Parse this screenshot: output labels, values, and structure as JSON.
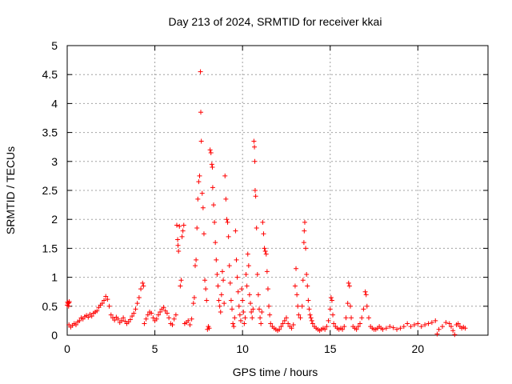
{
  "chart_data": {
    "type": "scatter",
    "title": "Day 213 of 2024, SRMTID for receiver kkai",
    "xlabel": "GPS time / hours",
    "ylabel": "SRMTID / TECUs",
    "xlim": [
      0,
      24
    ],
    "ylim": [
      0,
      5
    ],
    "xticks": [
      "0",
      "5",
      "10",
      "15",
      "20"
    ],
    "yticks": [
      "0",
      "0.5",
      "1",
      "1.5",
      "2",
      "2.5",
      "3",
      "3.5",
      "4",
      "4.5",
      "5"
    ],
    "grid": true,
    "marker": "+",
    "series": [
      {
        "name": "SRMTID",
        "color": "#ff0000",
        "points": [
          [
            0.0,
            0.52
          ],
          [
            0.02,
            0.57
          ],
          [
            0.05,
            0.55
          ],
          [
            0.08,
            0.5
          ],
          [
            0.1,
            0.56
          ],
          [
            0.12,
            0.58
          ],
          [
            0.1,
            0.18
          ],
          [
            0.2,
            0.14
          ],
          [
            0.3,
            0.17
          ],
          [
            0.4,
            0.2
          ],
          [
            0.5,
            0.18
          ],
          [
            0.6,
            0.23
          ],
          [
            0.7,
            0.25
          ],
          [
            0.8,
            0.3
          ],
          [
            0.9,
            0.28
          ],
          [
            1.0,
            0.32
          ],
          [
            1.1,
            0.34
          ],
          [
            1.2,
            0.31
          ],
          [
            1.3,
            0.36
          ],
          [
            1.4,
            0.33
          ],
          [
            1.5,
            0.38
          ],
          [
            1.6,
            0.4
          ],
          [
            1.7,
            0.42
          ],
          [
            1.8,
            0.48
          ],
          [
            1.9,
            0.52
          ],
          [
            2.0,
            0.55
          ],
          [
            2.1,
            0.6
          ],
          [
            2.2,
            0.67
          ],
          [
            2.3,
            0.62
          ],
          [
            2.4,
            0.5
          ],
          [
            2.5,
            0.35
          ],
          [
            2.6,
            0.3
          ],
          [
            2.7,
            0.26
          ],
          [
            2.8,
            0.31
          ],
          [
            2.9,
            0.28
          ],
          [
            3.0,
            0.22
          ],
          [
            3.1,
            0.25
          ],
          [
            3.2,
            0.3
          ],
          [
            3.3,
            0.24
          ],
          [
            3.4,
            0.2
          ],
          [
            3.5,
            0.23
          ],
          [
            3.6,
            0.27
          ],
          [
            3.7,
            0.33
          ],
          [
            3.8,
            0.38
          ],
          [
            3.9,
            0.45
          ],
          [
            4.0,
            0.55
          ],
          [
            4.1,
            0.65
          ],
          [
            4.2,
            0.8
          ],
          [
            4.3,
            0.9
          ],
          [
            4.35,
            0.85
          ],
          [
            4.4,
            0.2
          ],
          [
            4.5,
            0.28
          ],
          [
            4.6,
            0.35
          ],
          [
            4.7,
            0.4
          ],
          [
            4.8,
            0.38
          ],
          [
            4.9,
            0.3
          ],
          [
            5.0,
            0.25
          ],
          [
            5.1,
            0.28
          ],
          [
            5.2,
            0.35
          ],
          [
            5.3,
            0.4
          ],
          [
            5.4,
            0.45
          ],
          [
            5.5,
            0.48
          ],
          [
            5.6,
            0.42
          ],
          [
            5.7,
            0.38
          ],
          [
            5.8,
            0.3
          ],
          [
            5.9,
            0.2
          ],
          [
            6.0,
            0.18
          ],
          [
            6.1,
            0.28
          ],
          [
            6.2,
            0.35
          ],
          [
            6.25,
            1.9
          ],
          [
            6.3,
            1.65
          ],
          [
            6.32,
            1.55
          ],
          [
            6.35,
            1.45
          ],
          [
            6.4,
            1.88
          ],
          [
            6.45,
            0.85
          ],
          [
            6.5,
            0.95
          ],
          [
            6.55,
            1.7
          ],
          [
            6.6,
            1.8
          ],
          [
            6.65,
            1.9
          ],
          [
            6.7,
            0.2
          ],
          [
            6.8,
            0.22
          ],
          [
            6.9,
            0.25
          ],
          [
            7.0,
            0.18
          ],
          [
            7.1,
            0.28
          ],
          [
            7.2,
            0.55
          ],
          [
            7.25,
            0.65
          ],
          [
            7.3,
            1.2
          ],
          [
            7.35,
            1.3
          ],
          [
            7.4,
            1.85
          ],
          [
            7.45,
            2.35
          ],
          [
            7.5,
            2.65
          ],
          [
            7.55,
            2.75
          ],
          [
            7.6,
            4.55
          ],
          [
            7.62,
            3.85
          ],
          [
            7.65,
            3.35
          ],
          [
            7.7,
            2.45
          ],
          [
            7.75,
            2.2
          ],
          [
            7.8,
            1.75
          ],
          [
            7.85,
            0.95
          ],
          [
            7.9,
            0.8
          ],
          [
            7.95,
            0.6
          ],
          [
            8.0,
            0.1
          ],
          [
            8.05,
            0.15
          ],
          [
            8.1,
            0.12
          ],
          [
            8.15,
            3.2
          ],
          [
            8.2,
            3.15
          ],
          [
            8.25,
            2.95
          ],
          [
            8.28,
            2.9
          ],
          [
            8.3,
            2.55
          ],
          [
            8.35,
            2.25
          ],
          [
            8.4,
            1.95
          ],
          [
            8.45,
            1.6
          ],
          [
            8.5,
            1.3
          ],
          [
            8.55,
            1.05
          ],
          [
            8.6,
            0.85
          ],
          [
            8.65,
            0.6
          ],
          [
            8.7,
            0.5
          ],
          [
            8.75,
            0.4
          ],
          [
            8.8,
            0.7
          ],
          [
            8.85,
            1.1
          ],
          [
            8.9,
            0.95
          ],
          [
            8.95,
            0.55
          ],
          [
            9.0,
            2.75
          ],
          [
            9.05,
            2.35
          ],
          [
            9.1,
            2.0
          ],
          [
            9.15,
            1.95
          ],
          [
            9.2,
            1.7
          ],
          [
            9.25,
            1.2
          ],
          [
            9.3,
            0.9
          ],
          [
            9.35,
            0.6
          ],
          [
            9.4,
            0.45
          ],
          [
            9.45,
            0.2
          ],
          [
            9.5,
            0.15
          ],
          [
            9.55,
            0.3
          ],
          [
            9.6,
            1.8
          ],
          [
            9.65,
            1.3
          ],
          [
            9.7,
            1.0
          ],
          [
            9.75,
            0.75
          ],
          [
            9.8,
            0.5
          ],
          [
            9.85,
            0.35
          ],
          [
            9.9,
            0.25
          ],
          [
            9.95,
            0.8
          ],
          [
            10.0,
            0.6
          ],
          [
            10.05,
            0.4
          ],
          [
            10.1,
            0.2
          ],
          [
            10.15,
            0.3
          ],
          [
            10.2,
            1.05
          ],
          [
            10.25,
            0.85
          ],
          [
            10.3,
            1.4
          ],
          [
            10.35,
            1.2
          ],
          [
            10.4,
            0.7
          ],
          [
            10.45,
            0.55
          ],
          [
            10.5,
            0.4
          ],
          [
            10.55,
            0.3
          ],
          [
            10.6,
            0.45
          ],
          [
            10.65,
            3.35
          ],
          [
            10.68,
            3.25
          ],
          [
            10.7,
            3.0
          ],
          [
            10.72,
            2.5
          ],
          [
            10.75,
            2.4
          ],
          [
            10.8,
            1.85
          ],
          [
            10.85,
            1.05
          ],
          [
            10.9,
            0.7
          ],
          [
            10.95,
            0.45
          ],
          [
            11.0,
            0.3
          ],
          [
            11.05,
            0.2
          ],
          [
            11.1,
            0.4
          ],
          [
            11.15,
            1.95
          ],
          [
            11.2,
            1.75
          ],
          [
            11.25,
            1.5
          ],
          [
            11.3,
            1.45
          ],
          [
            11.35,
            1.4
          ],
          [
            11.4,
            1.1
          ],
          [
            11.45,
            0.8
          ],
          [
            11.5,
            0.5
          ],
          [
            11.55,
            0.35
          ],
          [
            11.6,
            0.2
          ],
          [
            11.7,
            0.15
          ],
          [
            11.8,
            0.12
          ],
          [
            11.9,
            0.1
          ],
          [
            12.0,
            0.08
          ],
          [
            12.1,
            0.1
          ],
          [
            12.2,
            0.15
          ],
          [
            12.3,
            0.2
          ],
          [
            12.4,
            0.25
          ],
          [
            12.5,
            0.3
          ],
          [
            12.6,
            0.2
          ],
          [
            12.7,
            0.15
          ],
          [
            12.8,
            0.12
          ],
          [
            12.9,
            0.18
          ],
          [
            13.0,
            0.85
          ],
          [
            13.05,
            1.15
          ],
          [
            13.1,
            0.7
          ],
          [
            13.15,
            0.5
          ],
          [
            13.2,
            0.35
          ],
          [
            13.3,
            0.3
          ],
          [
            13.4,
            0.5
          ],
          [
            13.45,
            0.95
          ],
          [
            13.5,
            1.6
          ],
          [
            13.52,
            1.8
          ],
          [
            13.55,
            1.95
          ],
          [
            13.6,
            1.5
          ],
          [
            13.65,
            1.05
          ],
          [
            13.7,
            0.85
          ],
          [
            13.75,
            0.6
          ],
          [
            13.8,
            0.45
          ],
          [
            13.85,
            0.35
          ],
          [
            13.9,
            0.3
          ],
          [
            13.95,
            0.25
          ],
          [
            14.0,
            0.2
          ],
          [
            14.1,
            0.15
          ],
          [
            14.2,
            0.12
          ],
          [
            14.3,
            0.1
          ],
          [
            14.4,
            0.08
          ],
          [
            14.5,
            0.1
          ],
          [
            14.6,
            0.12
          ],
          [
            14.7,
            0.1
          ],
          [
            14.8,
            0.15
          ],
          [
            14.9,
            0.25
          ],
          [
            15.0,
            0.45
          ],
          [
            15.05,
            0.65
          ],
          [
            15.1,
            0.6
          ],
          [
            15.15,
            0.35
          ],
          [
            15.2,
            0.2
          ],
          [
            15.3,
            0.15
          ],
          [
            15.4,
            0.12
          ],
          [
            15.5,
            0.1
          ],
          [
            15.6,
            0.12
          ],
          [
            15.7,
            0.1
          ],
          [
            15.8,
            0.15
          ],
          [
            15.9,
            0.3
          ],
          [
            16.0,
            0.55
          ],
          [
            16.05,
            0.9
          ],
          [
            16.1,
            0.85
          ],
          [
            16.15,
            0.5
          ],
          [
            16.2,
            0.3
          ],
          [
            16.3,
            0.15
          ],
          [
            16.4,
            0.12
          ],
          [
            16.5,
            0.1
          ],
          [
            16.6,
            0.15
          ],
          [
            16.7,
            0.2
          ],
          [
            16.8,
            0.3
          ],
          [
            16.9,
            0.45
          ],
          [
            17.0,
            0.75
          ],
          [
            17.05,
            0.7
          ],
          [
            17.1,
            0.5
          ],
          [
            17.2,
            0.3
          ],
          [
            17.3,
            0.15
          ],
          [
            17.4,
            0.12
          ],
          [
            17.5,
            0.1
          ],
          [
            17.6,
            0.1
          ],
          [
            17.7,
            0.12
          ],
          [
            17.8,
            0.15
          ],
          [
            17.9,
            0.12
          ],
          [
            18.0,
            0.1
          ],
          [
            18.2,
            0.12
          ],
          [
            18.4,
            0.15
          ],
          [
            18.6,
            0.13
          ],
          [
            18.8,
            0.1
          ],
          [
            19.0,
            0.12
          ],
          [
            19.2,
            0.15
          ],
          [
            19.4,
            0.2
          ],
          [
            19.6,
            0.15
          ],
          [
            19.8,
            0.18
          ],
          [
            20.0,
            0.2
          ],
          [
            20.2,
            0.15
          ],
          [
            20.4,
            0.18
          ],
          [
            20.6,
            0.2
          ],
          [
            20.8,
            0.22
          ],
          [
            21.0,
            0.25
          ],
          [
            21.1,
            0.02
          ],
          [
            21.2,
            0.1
          ],
          [
            21.4,
            0.15
          ],
          [
            21.6,
            0.22
          ],
          [
            21.8,
            0.2
          ],
          [
            21.9,
            0.15
          ],
          [
            22.0,
            0.08
          ],
          [
            22.1,
            0.01
          ],
          [
            22.2,
            0.18
          ],
          [
            22.3,
            0.2
          ],
          [
            22.4,
            0.15
          ],
          [
            22.5,
            0.12
          ],
          [
            22.6,
            0.14
          ],
          [
            22.7,
            0.12
          ]
        ]
      }
    ]
  }
}
